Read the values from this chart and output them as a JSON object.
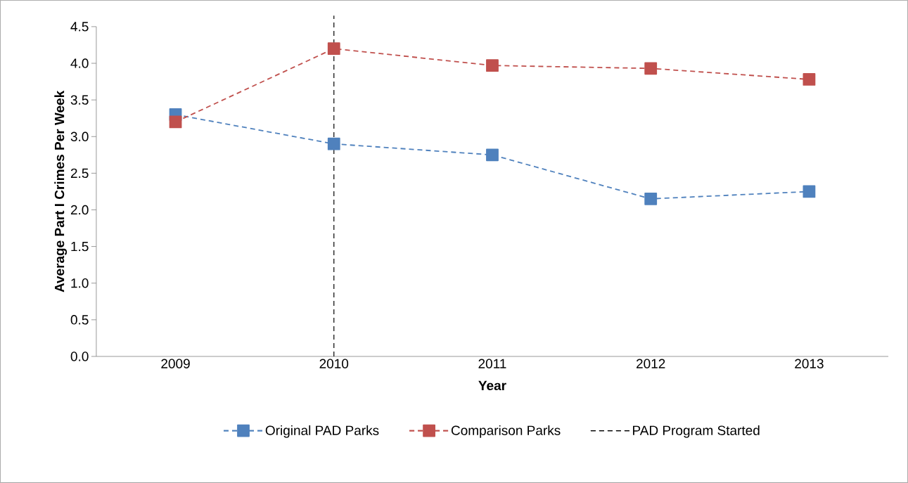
{
  "chart_data": {
    "type": "line",
    "xlabel": "Year",
    "ylabel": "Average Part I Crimes Per Week",
    "categories": [
      "2009",
      "2010",
      "2011",
      "2012",
      "2013"
    ],
    "series": [
      {
        "name": "Original PAD Parks",
        "color": "#4f81bd",
        "values": [
          3.3,
          2.9,
          2.75,
          2.15,
          2.25
        ]
      },
      {
        "name": "Comparison Parks",
        "color": "#c0504d",
        "values": [
          3.2,
          4.2,
          3.97,
          3.93,
          3.78
        ]
      }
    ],
    "ylim": [
      0,
      4.5
    ],
    "yticks": [
      {
        "value": 0,
        "label": "0.0"
      },
      {
        "value": 0.5,
        "label": "0.5"
      },
      {
        "value": 1,
        "label": "1.0"
      },
      {
        "value": 1.5,
        "label": "1.5"
      },
      {
        "value": 2,
        "label": "2.0"
      },
      {
        "value": 2.5,
        "label": "2.5"
      },
      {
        "value": 3,
        "label": "3.0"
      },
      {
        "value": 3.5,
        "label": "3.5"
      },
      {
        "value": 4,
        "label": "4.0"
      },
      {
        "value": 4.5,
        "label": "4.5"
      }
    ],
    "ref_lines": [
      {
        "axis": "x",
        "value": "2010",
        "label": "PAD Program Started",
        "color": "#000000",
        "line_style": "dashed"
      }
    ],
    "marker": "square",
    "line_style": "dashed",
    "legend": "bottom",
    "grid": false
  }
}
